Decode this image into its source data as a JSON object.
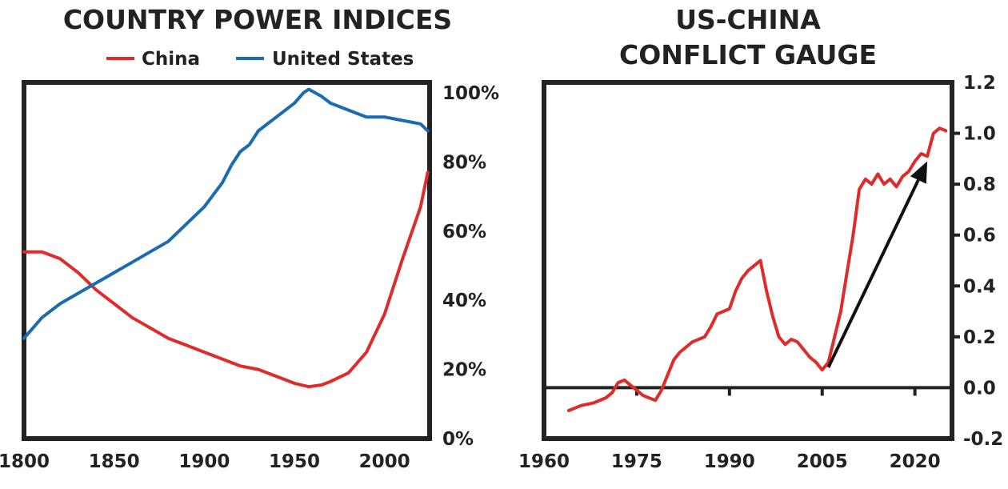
{
  "chart_data": [
    {
      "type": "line",
      "title": "COUNTRY POWER INDICES",
      "x_ticks": [
        "1800",
        "1850",
        "1900",
        "1950",
        "2000"
      ],
      "y_ticks": [
        "0%",
        "20%",
        "40%",
        "60%",
        "80%",
        "100%"
      ],
      "xlim": [
        1800,
        2025
      ],
      "ylim": [
        0,
        103
      ],
      "y_axis_side": "right",
      "legend_placement": "top",
      "grid": false,
      "series": [
        {
          "name": "China",
          "color": "#e02b2b",
          "x": [
            1800,
            1810,
            1820,
            1830,
            1840,
            1850,
            1860,
            1870,
            1880,
            1890,
            1900,
            1910,
            1920,
            1930,
            1940,
            1950,
            1958,
            1965,
            1970,
            1980,
            1990,
            2000,
            2010,
            2020,
            2024
          ],
          "y": [
            54,
            54,
            52,
            48,
            43,
            39,
            35,
            32,
            29,
            27,
            25,
            23,
            21,
            20,
            18,
            16,
            15,
            15.5,
            16.5,
            19,
            25,
            36,
            52,
            67,
            77
          ]
        },
        {
          "name": "United States",
          "color": "#1a6bb0",
          "x": [
            1800,
            1810,
            1820,
            1830,
            1840,
            1850,
            1860,
            1870,
            1880,
            1890,
            1900,
            1910,
            1915,
            1920,
            1925,
            1930,
            1940,
            1950,
            1955,
            1958,
            1965,
            1970,
            1980,
            1990,
            2000,
            2010,
            2020,
            2024
          ],
          "y": [
            29,
            35,
            39,
            42,
            45,
            48,
            51,
            54,
            57,
            62,
            67,
            74,
            79,
            83,
            85,
            89,
            93,
            97,
            100,
            101,
            99,
            97,
            95,
            93,
            93,
            92,
            91,
            89
          ]
        }
      ]
    },
    {
      "type": "line",
      "title": "US-CHINA CONFLICT GAUGE",
      "title_lines": [
        "US-CHINA",
        "CONFLICT GAUGE"
      ],
      "x_ticks": [
        "1960",
        "1975",
        "1990",
        "2005",
        "2020"
      ],
      "y_ticks": [
        "-0.2",
        "0.0",
        "0.2",
        "0.4",
        "0.6",
        "0.8",
        "1.0",
        "1.2"
      ],
      "xlim": [
        1960,
        2026
      ],
      "ylim": [
        -0.2,
        1.2
      ],
      "y_axis_side": "right",
      "grid": false,
      "reference_line_y": 0,
      "annotation": {
        "type": "arrow",
        "from": [
          2006,
          0.08
        ],
        "to": [
          2022,
          0.89
        ]
      },
      "series": [
        {
          "name": "",
          "color": "#e02b2b",
          "x": [
            1964,
            1966,
            1968,
            1970,
            1971,
            1972,
            1973,
            1974,
            1975,
            1976,
            1978,
            1979,
            1980,
            1981,
            1982,
            1984,
            1986,
            1987,
            1988,
            1989,
            1990,
            1991,
            1992,
            1993,
            1994,
            1995,
            1996,
            1997,
            1998,
            1999,
            2000,
            2001,
            2002,
            2003,
            2004,
            2005,
            2006,
            2007,
            2008,
            2009,
            2010,
            2011,
            2012,
            2013,
            2014,
            2015,
            2016,
            2017,
            2018,
            2019,
            2020,
            2021,
            2022,
            2023,
            2024,
            2025
          ],
          "y": [
            -0.09,
            -0.07,
            -0.06,
            -0.04,
            -0.02,
            0.02,
            0.03,
            0.01,
            -0.01,
            -0.03,
            -0.05,
            -0.01,
            0.05,
            0.11,
            0.14,
            0.18,
            0.2,
            0.24,
            0.29,
            0.3,
            0.31,
            0.38,
            0.43,
            0.46,
            0.48,
            0.5,
            0.38,
            0.28,
            0.2,
            0.17,
            0.19,
            0.18,
            0.15,
            0.12,
            0.1,
            0.07,
            0.1,
            0.2,
            0.3,
            0.45,
            0.6,
            0.78,
            0.82,
            0.8,
            0.84,
            0.8,
            0.82,
            0.79,
            0.83,
            0.85,
            0.89,
            0.92,
            0.91,
            1.0,
            1.02,
            1.01
          ]
        }
      ]
    }
  ]
}
